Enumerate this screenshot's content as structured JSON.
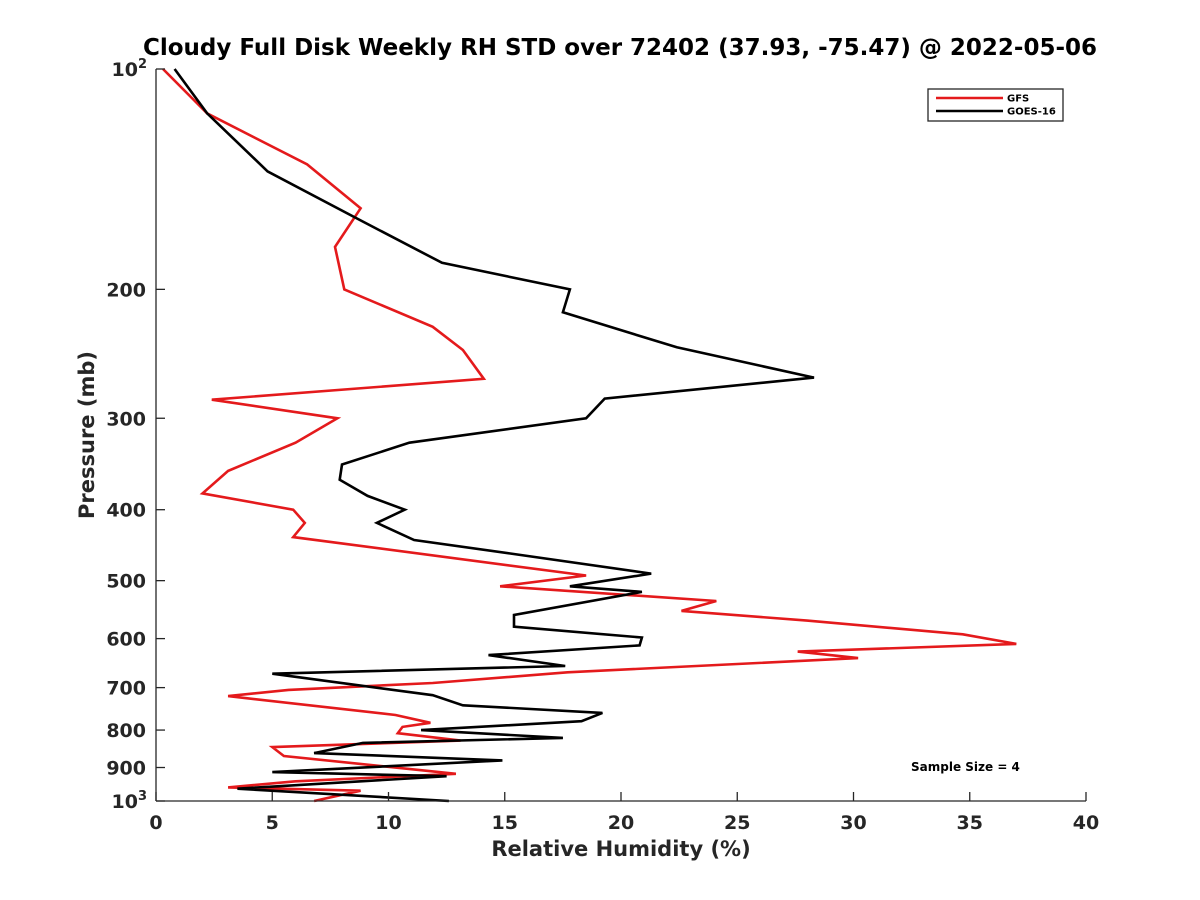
{
  "chart_data": {
    "type": "line",
    "title": "Cloudy Full Disk Weekly RH STD over 72402 (37.93, -75.47) @ 2022-05-06",
    "xlabel": "Relative Humidity (%)",
    "ylabel": "Pressure (mb)",
    "xlim": [
      0,
      40
    ],
    "ylim": [
      100,
      1000
    ],
    "y_scale": "log",
    "y_reversed": true,
    "x_ticks": [
      "0",
      "5",
      "10",
      "15",
      "20",
      "25",
      "30",
      "35",
      "40"
    ],
    "y_ticks": [
      {
        "value": 100,
        "base": "10",
        "exp": "2"
      },
      {
        "value": 200,
        "label": "200"
      },
      {
        "value": 300,
        "label": "300"
      },
      {
        "value": 400,
        "label": "400"
      },
      {
        "value": 500,
        "label": "500"
      },
      {
        "value": 600,
        "label": "600"
      },
      {
        "value": 700,
        "label": "700"
      },
      {
        "value": 800,
        "label": "800"
      },
      {
        "value": 900,
        "label": "900"
      },
      {
        "value": 1000,
        "base": "10",
        "exp": "3"
      }
    ],
    "grid": false,
    "legend_position": "top-right",
    "annotation": "Sample Size = 4",
    "series": [
      {
        "name": "GFS",
        "color": "#e41a1c",
        "points": [
          [
            0.3,
            100
          ],
          [
            2.2,
            115
          ],
          [
            6.5,
            135
          ],
          [
            8.8,
            155
          ],
          [
            7.7,
            175
          ],
          [
            8.1,
            200
          ],
          [
            11.9,
            225
          ],
          [
            13.2,
            242
          ],
          [
            14.1,
            265
          ],
          [
            2.4,
            283
          ],
          [
            7.8,
            300
          ],
          [
            6.0,
            324
          ],
          [
            3.1,
            354
          ],
          [
            2.0,
            380
          ],
          [
            5.9,
            400
          ],
          [
            6.4,
            417
          ],
          [
            5.9,
            436
          ],
          [
            18.5,
            492
          ],
          [
            14.8,
            509
          ],
          [
            24.1,
            533
          ],
          [
            22.6,
            550
          ],
          [
            28.0,
            567
          ],
          [
            34.7,
            592
          ],
          [
            37.0,
            610
          ],
          [
            27.6,
            625
          ],
          [
            30.2,
            638
          ],
          [
            17.7,
            667
          ],
          [
            11.9,
            690
          ],
          [
            5.7,
            705
          ],
          [
            3.1,
            719
          ],
          [
            10.3,
            763
          ],
          [
            11.8,
            782
          ],
          [
            10.6,
            792
          ],
          [
            10.4,
            808
          ],
          [
            13.1,
            827
          ],
          [
            5.0,
            844
          ],
          [
            5.5,
            868
          ],
          [
            12.9,
            918
          ],
          [
            6.0,
            940
          ],
          [
            3.1,
            958
          ],
          [
            8.8,
            968
          ],
          [
            6.8,
            1000
          ]
        ]
      },
      {
        "name": "GOES-16",
        "color": "#000000",
        "points": [
          [
            0.8,
            100
          ],
          [
            2.2,
            115
          ],
          [
            4.8,
            138
          ],
          [
            8.8,
            161
          ],
          [
            12.3,
            184
          ],
          [
            17.8,
            200
          ],
          [
            17.5,
            215
          ],
          [
            22.4,
            240
          ],
          [
            28.3,
            264
          ],
          [
            19.3,
            282
          ],
          [
            18.5,
            300
          ],
          [
            10.9,
            324
          ],
          [
            8.0,
            347
          ],
          [
            7.9,
            364
          ],
          [
            9.1,
            383
          ],
          [
            10.7,
            400
          ],
          [
            9.5,
            417
          ],
          [
            11.1,
            440
          ],
          [
            15.2,
            459
          ],
          [
            21.3,
            489
          ],
          [
            17.8,
            509
          ],
          [
            20.9,
            518
          ],
          [
            15.4,
            557
          ],
          [
            15.4,
            578
          ],
          [
            20.9,
            598
          ],
          [
            20.8,
            613
          ],
          [
            14.3,
            632
          ],
          [
            17.6,
            654
          ],
          [
            5.0,
            670
          ],
          [
            11.9,
            717
          ],
          [
            13.2,
            740
          ],
          [
            19.2,
            758
          ],
          [
            18.3,
            778
          ],
          [
            11.4,
            800
          ],
          [
            17.5,
            820
          ],
          [
            8.9,
            833
          ],
          [
            6.8,
            860
          ],
          [
            14.9,
            880
          ],
          [
            5.0,
            913
          ],
          [
            12.5,
            925
          ],
          [
            3.5,
            962
          ],
          [
            12.6,
            1000
          ]
        ]
      }
    ]
  }
}
